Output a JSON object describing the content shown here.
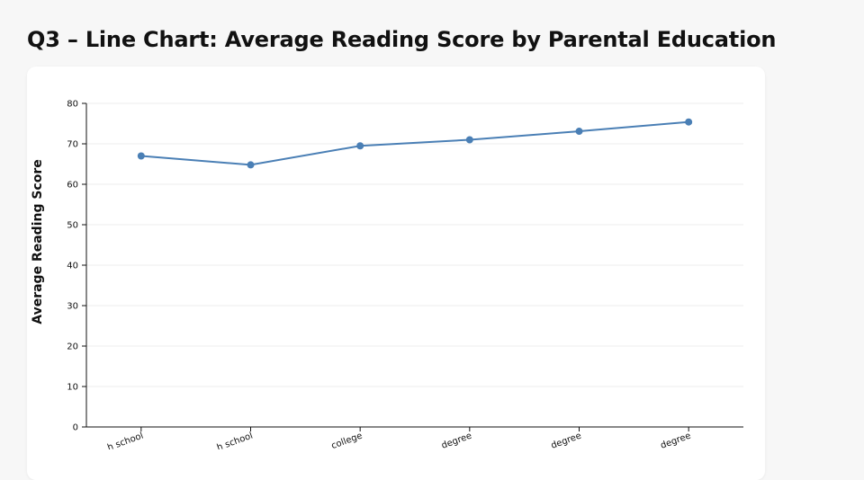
{
  "page": {
    "title": "Q3 – Line Chart: Average Reading Score by Parental Education"
  },
  "colors": {
    "line": "#4a7fb5",
    "grid": "#eeeeee",
    "axis": "#111111"
  },
  "chart_data": {
    "type": "line",
    "title": "Q3 – Line Chart: Average Reading Score by Parental Education",
    "xlabel": "",
    "ylabel": "Average Reading Score",
    "categories": [
      "some high school",
      "high school",
      "some college",
      "associate's degree",
      "bachelor's degree",
      "master's degree"
    ],
    "x_tick_labels_visible": [
      "h school",
      "h school",
      "college",
      "degree",
      "degree",
      "degree"
    ],
    "series": [
      {
        "values": [
          67.0,
          64.8,
          69.5,
          71.0,
          73.1,
          75.4
        ]
      }
    ],
    "ylim": [
      0,
      80
    ],
    "yticks": [
      0,
      10,
      20,
      30,
      40,
      50,
      60,
      70,
      80
    ],
    "grid": true,
    "legend": "none"
  }
}
